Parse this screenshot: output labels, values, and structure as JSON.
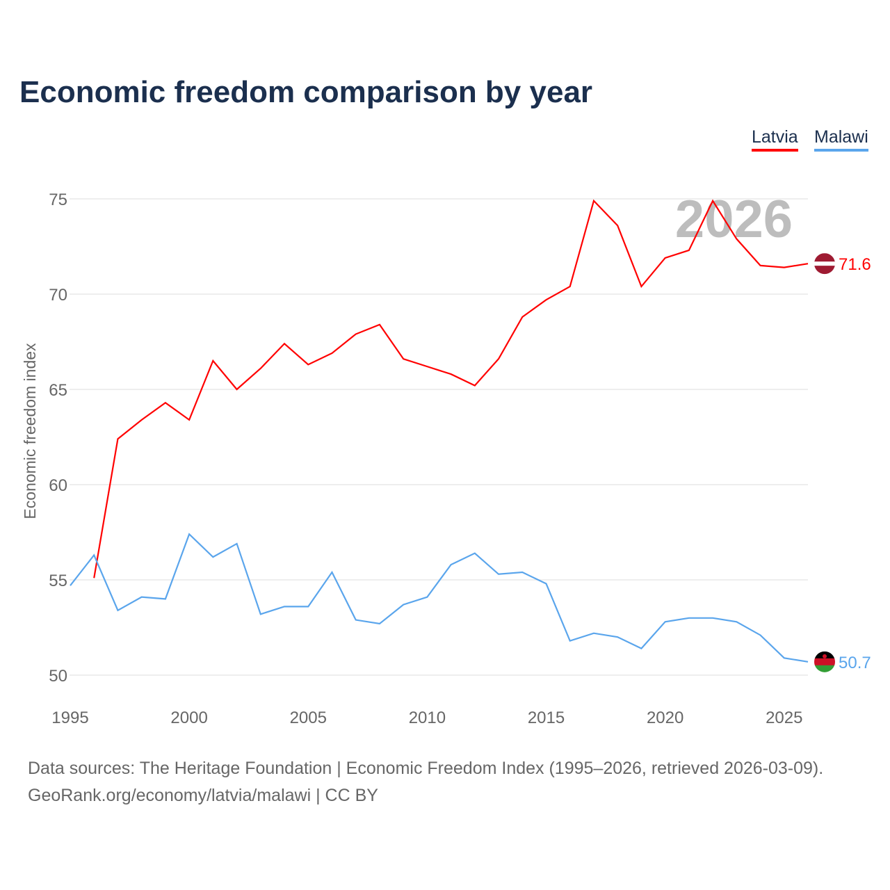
{
  "title": "Economic freedom comparison by year",
  "watermark": "2026",
  "sources": {
    "line1": "Data sources: The Heritage Foundation | Economic Freedom Index (1995–2026, retrieved 2026-03-09).",
    "line2": "GeoRank.org/economy/latvia/malawi | CC BY"
  },
  "chart_data": {
    "type": "line",
    "title": "Economic freedom comparison by year",
    "xlabel": "",
    "ylabel": "Economic freedom index",
    "xlim": [
      1995,
      2026
    ],
    "ylim": [
      50,
      75
    ],
    "xticks": [
      1995,
      2000,
      2005,
      2010,
      2015,
      2020,
      2025
    ],
    "yticks": [
      50,
      55,
      60,
      65,
      70,
      75
    ],
    "grid": true,
    "legend_position": "top-right",
    "series": [
      {
        "name": "Latvia",
        "color": "#ff0000",
        "end_label": "71.6",
        "x": [
          1996,
          1997,
          1998,
          1999,
          2000,
          2001,
          2002,
          2003,
          2004,
          2005,
          2006,
          2007,
          2008,
          2009,
          2010,
          2011,
          2012,
          2013,
          2014,
          2015,
          2016,
          2017,
          2018,
          2019,
          2020,
          2021,
          2022,
          2023,
          2024,
          2025,
          2026
        ],
        "values": [
          55.1,
          62.4,
          63.4,
          64.3,
          63.4,
          66.5,
          65.0,
          66.1,
          67.4,
          66.3,
          66.9,
          67.9,
          68.4,
          66.6,
          66.2,
          65.8,
          65.2,
          66.6,
          68.8,
          69.7,
          70.4,
          74.9,
          73.6,
          70.4,
          71.9,
          72.3,
          74.9,
          72.9,
          71.5,
          71.4,
          71.6
        ]
      },
      {
        "name": "Malawi",
        "color": "#5aa5ec",
        "end_label": "50.7",
        "x": [
          1995,
          1996,
          1997,
          1998,
          1999,
          2000,
          2001,
          2002,
          2003,
          2004,
          2005,
          2006,
          2007,
          2008,
          2009,
          2010,
          2011,
          2012,
          2013,
          2014,
          2015,
          2016,
          2017,
          2018,
          2019,
          2020,
          2021,
          2022,
          2023,
          2024,
          2025,
          2026
        ],
        "values": [
          54.7,
          56.3,
          53.4,
          54.1,
          54.0,
          57.4,
          56.2,
          56.9,
          53.2,
          53.6,
          53.6,
          55.4,
          52.9,
          52.7,
          53.7,
          54.1,
          55.8,
          56.4,
          55.3,
          55.4,
          54.8,
          51.8,
          52.2,
          52.0,
          51.4,
          52.8,
          53.0,
          53.0,
          52.8,
          52.1,
          50.9,
          50.7
        ]
      }
    ]
  }
}
